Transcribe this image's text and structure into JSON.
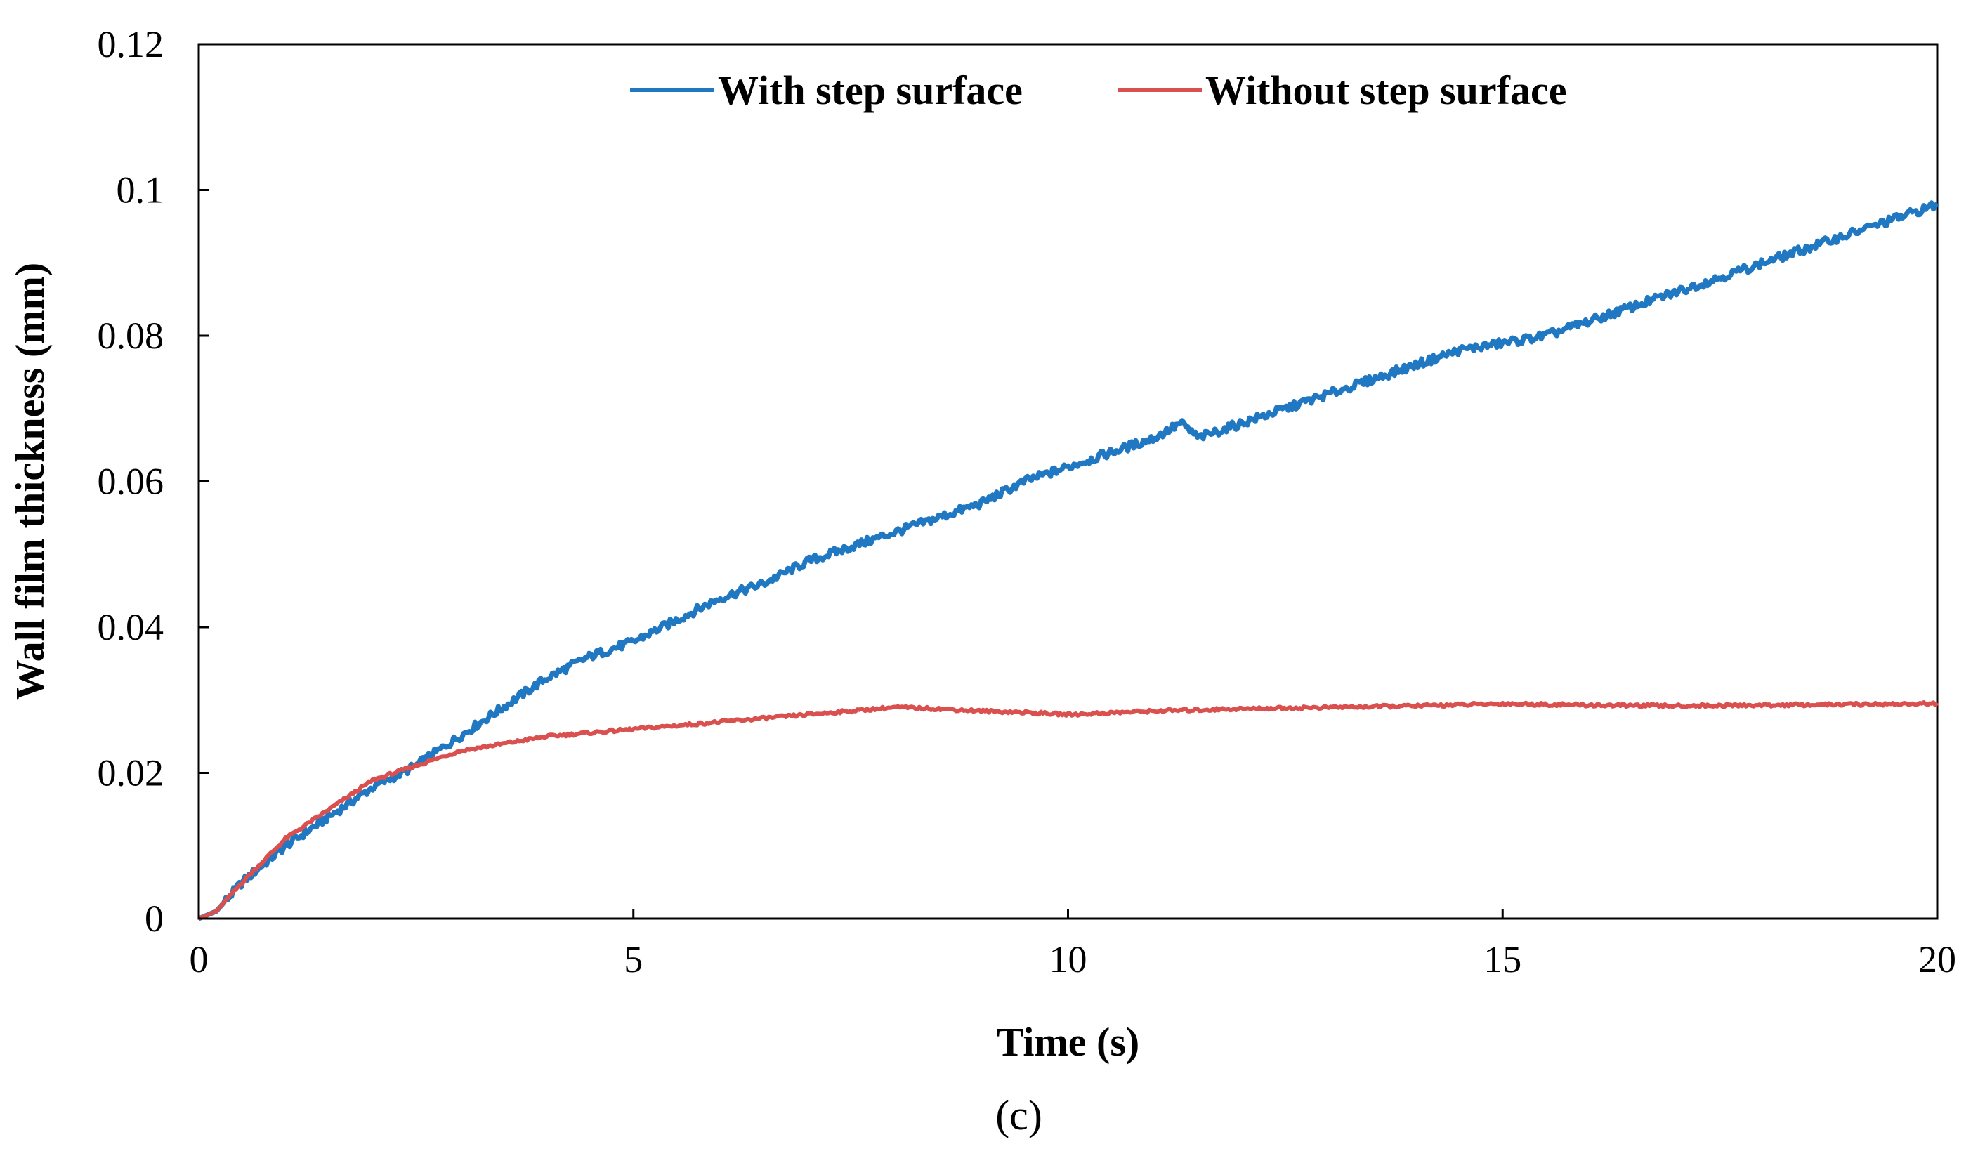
{
  "chart_data": {
    "type": "line",
    "title": "",
    "xlabel": "Time (s)",
    "ylabel": "Wall film thickness (mm)",
    "xlim": [
      0,
      20
    ],
    "ylim": [
      0,
      0.12
    ],
    "xticks": [
      0,
      5,
      10,
      15,
      20
    ],
    "xtick_labels": [
      "0",
      "5",
      "10",
      "15",
      "20"
    ],
    "yticks": [
      0,
      0.02,
      0.04,
      0.06,
      0.08,
      0.1,
      0.12
    ],
    "ytick_labels": [
      "0",
      "0.02",
      "0.04",
      "0.06",
      "0.08",
      "0.1",
      "0.12"
    ],
    "grid": false,
    "legend_position": "top",
    "caption": "(c)",
    "series": [
      {
        "name": "With step surface",
        "color": "#1f78c1",
        "x": [
          0,
          0.2,
          0.5,
          1,
          1.5,
          2,
          2.5,
          3,
          3.5,
          4,
          4.5,
          5,
          5.5,
          6,
          6.5,
          7,
          7.5,
          8,
          8.5,
          9,
          9.5,
          10,
          10.5,
          11,
          11.3,
          11.5,
          12,
          12.5,
          13,
          13.5,
          14,
          14.5,
          15,
          15.5,
          16,
          16.5,
          17,
          17.5,
          18,
          18.5,
          19,
          19.5,
          20
        ],
        "y": [
          0,
          0.001,
          0.005,
          0.01,
          0.014,
          0.018,
          0.021,
          0.025,
          0.029,
          0.033,
          0.036,
          0.038,
          0.041,
          0.044,
          0.046,
          0.049,
          0.051,
          0.053,
          0.055,
          0.057,
          0.06,
          0.062,
          0.064,
          0.066,
          0.068,
          0.066,
          0.068,
          0.07,
          0.072,
          0.074,
          0.076,
          0.078,
          0.079,
          0.08,
          0.082,
          0.084,
          0.086,
          0.088,
          0.09,
          0.092,
          0.094,
          0.096,
          0.098
        ]
      },
      {
        "name": "Without step surface",
        "color": "#d9504f",
        "x": [
          0,
          0.2,
          0.5,
          1,
          1.5,
          2,
          2.5,
          3,
          3.5,
          4,
          4.5,
          5,
          5.5,
          6,
          6.5,
          7,
          7.5,
          8,
          8.5,
          9,
          9.5,
          10,
          11,
          12,
          13,
          14,
          15,
          16,
          17,
          18,
          19,
          20
        ],
        "y": [
          0,
          0.001,
          0.005,
          0.011,
          0.015,
          0.019,
          0.021,
          0.023,
          0.024,
          0.025,
          0.0255,
          0.026,
          0.0265,
          0.027,
          0.0275,
          0.028,
          0.0285,
          0.029,
          0.0288,
          0.0285,
          0.0283,
          0.028,
          0.0285,
          0.0288,
          0.029,
          0.0292,
          0.0295,
          0.0293,
          0.0292,
          0.0293,
          0.0294,
          0.0295
        ]
      }
    ]
  }
}
